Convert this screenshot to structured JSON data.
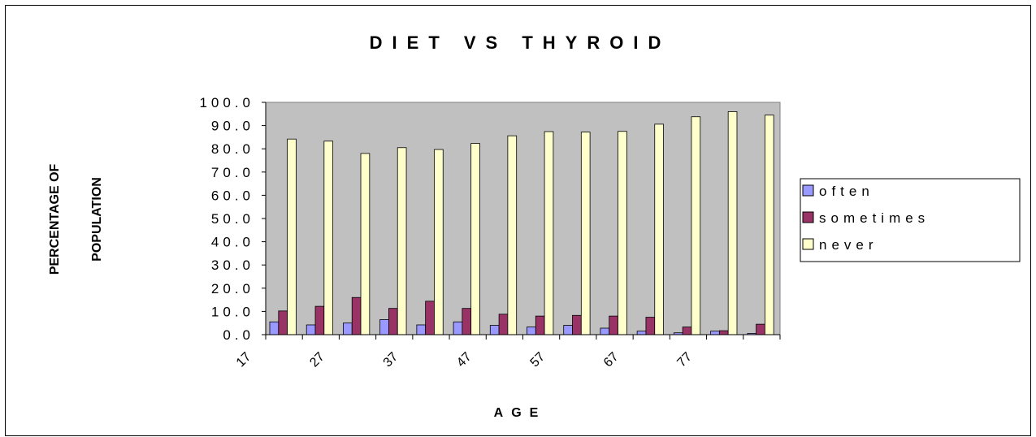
{
  "chart_data": {
    "type": "bar",
    "title": "DIET VS THYROID",
    "x_label": "AGE",
    "y_label": [
      "PERCENTAGE OF",
      "POPULATION"
    ],
    "categories": [
      "17",
      null,
      "27",
      null,
      "37",
      null,
      "47",
      null,
      "57",
      null,
      "67",
      null,
      "77",
      null
    ],
    "series": [
      {
        "name": "often",
        "color": "#9999ff",
        "values": [
          5.5,
          4.2,
          5.0,
          6.5,
          4.2,
          5.5,
          4.0,
          3.3,
          4.0,
          2.8,
          1.5,
          0.8,
          1.5,
          0.5
        ]
      },
      {
        "name": "sometimes",
        "color": "#993366",
        "values": [
          10.2,
          12.2,
          16.0,
          11.3,
          14.4,
          11.3,
          8.8,
          8.0,
          8.3,
          8.0,
          7.5,
          3.3,
          1.7,
          4.5
        ]
      },
      {
        "name": "never",
        "color": "#ffffcc",
        "values": [
          84.2,
          83.3,
          78.0,
          80.5,
          79.7,
          82.3,
          85.6,
          87.4,
          87.2,
          87.5,
          90.6,
          93.8,
          96.0,
          94.5
        ]
      }
    ],
    "ylim": [
      0,
      100
    ],
    "yticks": [
      {
        "value": 0,
        "label": "0.0"
      },
      {
        "value": 10,
        "label": "10.0"
      },
      {
        "value": 20,
        "label": "20.0"
      },
      {
        "value": 30,
        "label": "30.0"
      },
      {
        "value": 40,
        "label": "40.0"
      },
      {
        "value": 50,
        "label": "50.0"
      },
      {
        "value": 60,
        "label": "60.0"
      },
      {
        "value": 70,
        "label": "70.0"
      },
      {
        "value": 80,
        "label": "80.0"
      },
      {
        "value": 90,
        "label": "90.0"
      },
      {
        "value": 100,
        "label": "100.0"
      }
    ],
    "plot_background": "#c0c0c0",
    "legend": "right"
  }
}
